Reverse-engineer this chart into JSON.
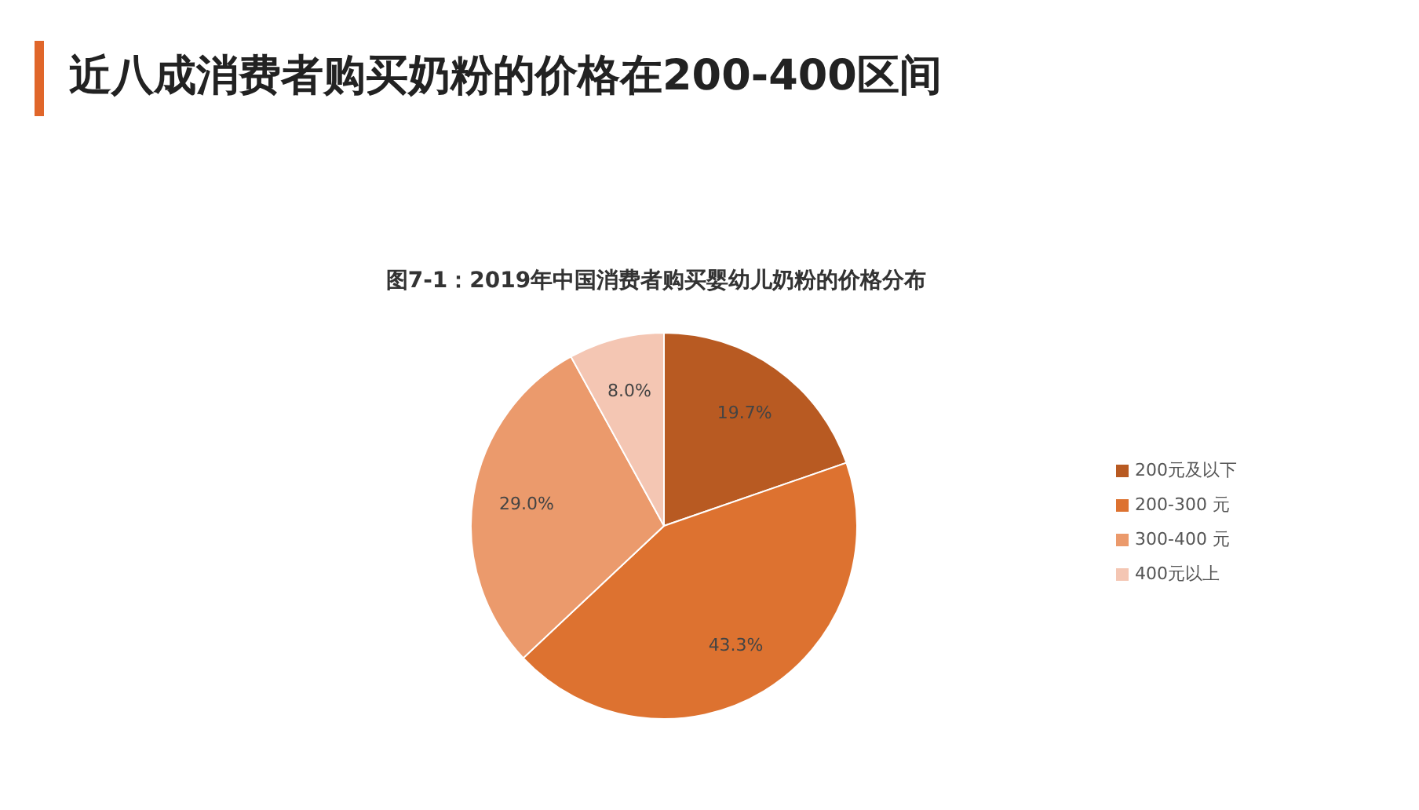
{
  "chart_data": {
    "type": "pie",
    "title": "近八成消费者购买奶粉的价格在200-400区间",
    "subtitle": "图7-1：2019年中国消费者购买婴幼儿奶粉的价格分布",
    "categories": [
      "200元及以下",
      "200-300 元",
      "300-400 元",
      "400元以上"
    ],
    "values": [
      19.7,
      43.3,
      29.0,
      8.0
    ],
    "colors": [
      "#b85a22",
      "#dd7230",
      "#eb9a6c",
      "#f4c6b3"
    ],
    "value_labels": [
      "19.7%",
      "43.3%",
      "29.0%",
      "8.0%"
    ],
    "legend": "right"
  }
}
